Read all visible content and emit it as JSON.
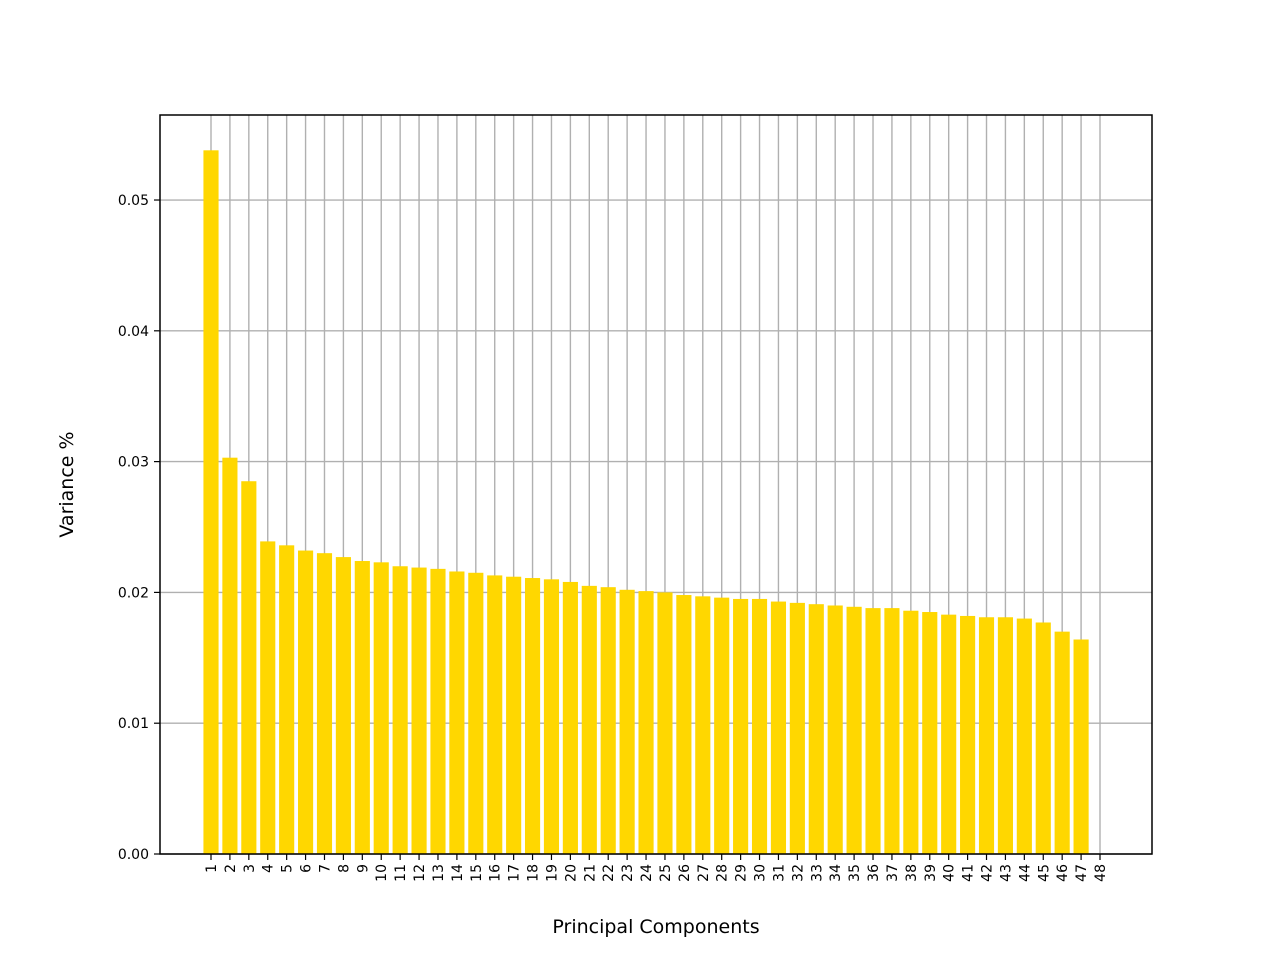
{
  "chart_data": {
    "type": "bar",
    "xlabel": "Principal Components",
    "ylabel": "Variance %",
    "categories": [
      "1",
      "2",
      "3",
      "4",
      "5",
      "6",
      "7",
      "8",
      "9",
      "10",
      "11",
      "12",
      "13",
      "14",
      "15",
      "16",
      "17",
      "18",
      "19",
      "20",
      "21",
      "22",
      "23",
      "24",
      "25",
      "26",
      "27",
      "28",
      "29",
      "30",
      "31",
      "32",
      "33",
      "34",
      "35",
      "36",
      "37",
      "38",
      "39",
      "40",
      "41",
      "42",
      "43",
      "44",
      "45",
      "46",
      "47",
      "48"
    ],
    "values": [
      0.0538,
      0.0303,
      0.0285,
      0.0239,
      0.0236,
      0.0232,
      0.023,
      0.0227,
      0.0224,
      0.0223,
      0.022,
      0.0219,
      0.0218,
      0.0216,
      0.0215,
      0.0213,
      0.0212,
      0.0211,
      0.021,
      0.0208,
      0.0205,
      0.0204,
      0.0202,
      0.0201,
      0.02,
      0.0198,
      0.0197,
      0.0196,
      0.0195,
      0.0195,
      0.0193,
      0.0192,
      0.0191,
      0.019,
      0.0189,
      0.0188,
      0.0188,
      0.0186,
      0.0185,
      0.0183,
      0.0182,
      0.0181,
      0.0181,
      0.018,
      0.0177,
      0.017,
      0.0164,
      0.0
    ],
    "ylim": [
      0,
      0.0565
    ],
    "yticks": [
      0.0,
      0.01,
      0.02,
      0.03,
      0.04,
      0.05
    ],
    "ytick_labels": [
      "0.00",
      "0.01",
      "0.02",
      "0.03",
      "0.04",
      "0.05"
    ],
    "bar_color": "#ffd700",
    "grid": true,
    "grid_color": "#b0b0b0"
  }
}
